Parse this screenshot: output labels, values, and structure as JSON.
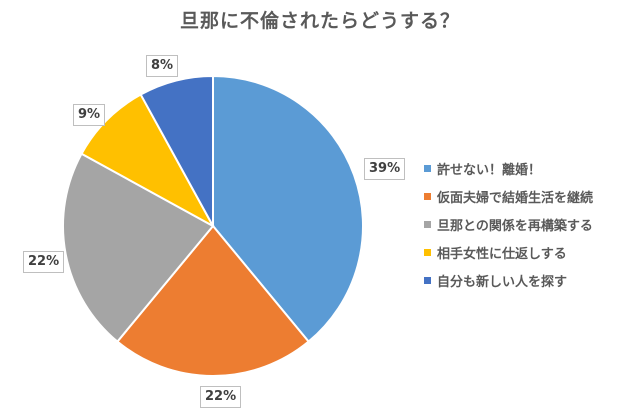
{
  "chart_data": {
    "type": "pie",
    "title": "旦那に不倫されたらどうする？",
    "categories": [
      "許せない！離婚！",
      "仮面夫婦で結婚生活を継続",
      "旦那との関係を再構築する",
      "相手女性に仕返しする",
      "自分も新しい人を探す"
    ],
    "values": [
      39,
      22,
      22,
      9,
      8
    ],
    "unit": "%",
    "colors": [
      "#5B9BD5",
      "#ED7D31",
      "#A5A5A5",
      "#FFC000",
      "#4472C4"
    ],
    "data_labels": [
      "39%",
      "22%",
      "22%",
      "9%",
      "8%"
    ],
    "legend_position": "right",
    "start_angle": "12 o'clock, clockwise"
  }
}
